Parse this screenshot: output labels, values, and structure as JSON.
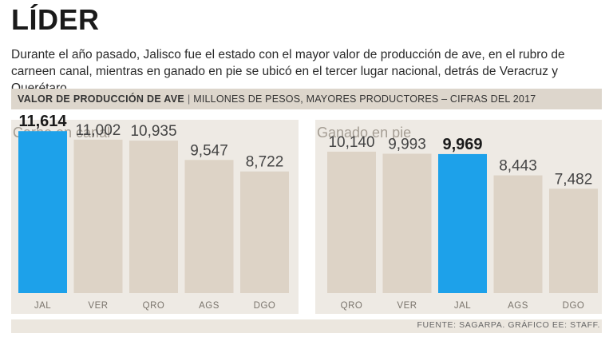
{
  "header": {
    "title": "LÍDER",
    "subtitle": "Durante el año pasado, Jalisco fue el estado con el mayor valor de producción de ave, en el rubro de carneen canal, mientras en ganado en pie se ubicó en el tercer lugar nacional, detrás de Veracruz y Querétaro.",
    "band_bold": "VALOR DE PRODUCCIÓN DE AVE",
    "band_sep": "|",
    "band_rest": "MILLONES DE PESOS, MAYORES PRODUCTORES – CIFRAS DEL 2017"
  },
  "colors": {
    "highlight": "#1da1ea",
    "bar": "#ddd3c6",
    "panel": "#eeeae4"
  },
  "chart_data": [
    {
      "type": "bar",
      "title": "Carne en canal",
      "categories": [
        "JAL",
        "VER",
        "QRO",
        "AGS",
        "DGO"
      ],
      "values": [
        11614,
        11002,
        10935,
        9547,
        8722
      ],
      "value_labels": [
        "11,614",
        "11,002",
        "10,935",
        "9,547",
        "8,722"
      ],
      "highlight": "JAL",
      "ylim": [
        0,
        13000
      ]
    },
    {
      "type": "bar",
      "title": "Ganado en pie",
      "categories": [
        "QRO",
        "VER",
        "JAL",
        "AGS",
        "DGO"
      ],
      "values": [
        10140,
        9993,
        9969,
        8443,
        7482
      ],
      "value_labels": [
        "10,140",
        "9,993",
        "9,969",
        "8,443",
        "7,482"
      ],
      "highlight": "JAL",
      "ylim": [
        0,
        13000
      ]
    }
  ],
  "footer": {
    "source": "FUENTE: SAGARPA. GRÁFICO EE: STAFF."
  }
}
